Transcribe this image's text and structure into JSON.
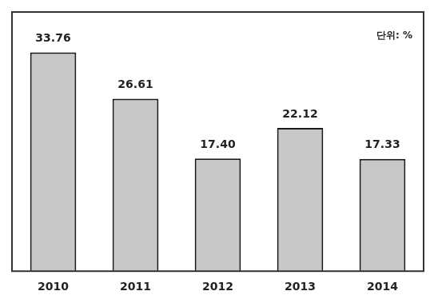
{
  "chart_data": {
    "type": "bar",
    "categories": [
      "2010",
      "2011",
      "2012",
      "2013",
      "2014"
    ],
    "values": [
      33.76,
      26.61,
      17.4,
      22.12,
      17.33
    ],
    "value_labels": [
      "33.76",
      "26.61",
      "17.40",
      "22.12",
      "17.33"
    ],
    "color": "#c8c8c8",
    "ylim": [
      0,
      40
    ],
    "grid": false,
    "data_labels": true,
    "tick_labels": "x",
    "annotations": [
      "단위: %"
    ]
  }
}
